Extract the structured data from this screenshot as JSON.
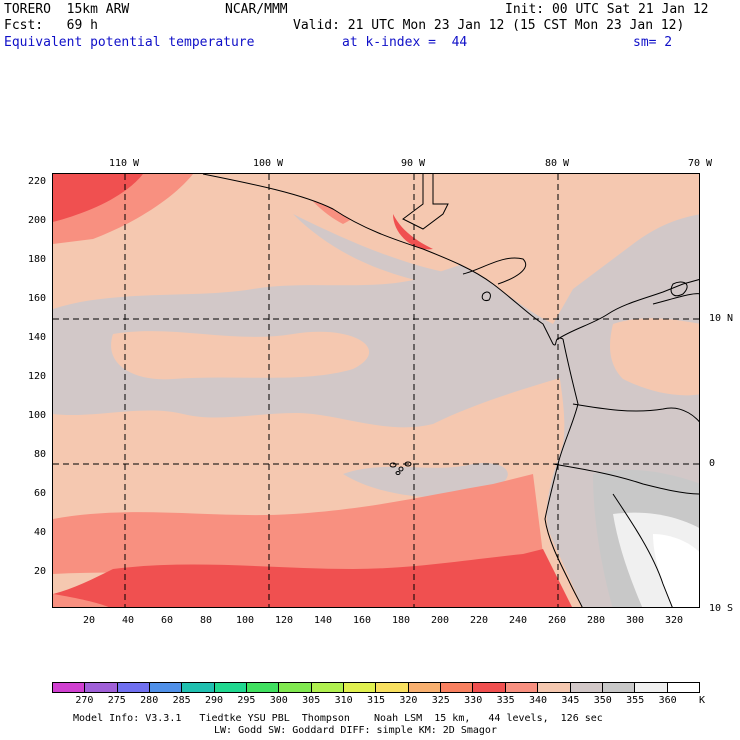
{
  "header": {
    "model": "TORERO  15km ARW",
    "center": "NCAR/MMM",
    "init": "Init: 00 UTC Sat 21 Jan 12",
    "fcst": "Fcst:   69 h",
    "valid": "Valid: 21 UTC Mon 23 Jan 12 (15 CST Mon 23 Jan 12)",
    "field": "Equivalent potential temperature",
    "level": "at k-index =  44",
    "smooth": "sm= 2"
  },
  "map": {
    "lon_labels": [
      "110 W",
      "100 W",
      "90 W",
      "80 W",
      "70 W"
    ],
    "lat_labels": [
      "10 N",
      "0",
      "10 S"
    ],
    "y_ticks": [
      "220",
      "200",
      "180",
      "160",
      "140",
      "120",
      "100",
      "80",
      "60",
      "40",
      "20"
    ],
    "x_ticks": [
      "20",
      "40",
      "60",
      "80",
      "100",
      "120",
      "140",
      "160",
      "180",
      "200",
      "220",
      "240",
      "260",
      "280",
      "300",
      "320"
    ]
  },
  "colorbar": {
    "unit": "K",
    "labels": [
      "270",
      "275",
      "280",
      "285",
      "290",
      "295",
      "300",
      "305",
      "310",
      "315",
      "320",
      "325",
      "330",
      "335",
      "340",
      "345",
      "350",
      "355",
      "360"
    ],
    "colors": [
      "#d040d0",
      "#a060d8",
      "#7070f0",
      "#5090e8",
      "#20c0b0",
      "#20d890",
      "#40e060",
      "#80e850",
      "#b0f050",
      "#e0f050",
      "#f8e060",
      "#f8b070",
      "#f88060",
      "#f05050",
      "#f89080",
      "#f5c8b0",
      "#d2c8c8",
      "#c8c8c8",
      "#f0f0f0",
      "#ffffff"
    ]
  },
  "footer": {
    "line1": "Model Info: V3.3.1   Tiedtke YSU PBL  Thompson    Noah LSM  15 km,   44 levels,  126 sec",
    "line2": "LW: Godd SW: Goddard DIFF: simple KM: 2D Smagor"
  }
}
